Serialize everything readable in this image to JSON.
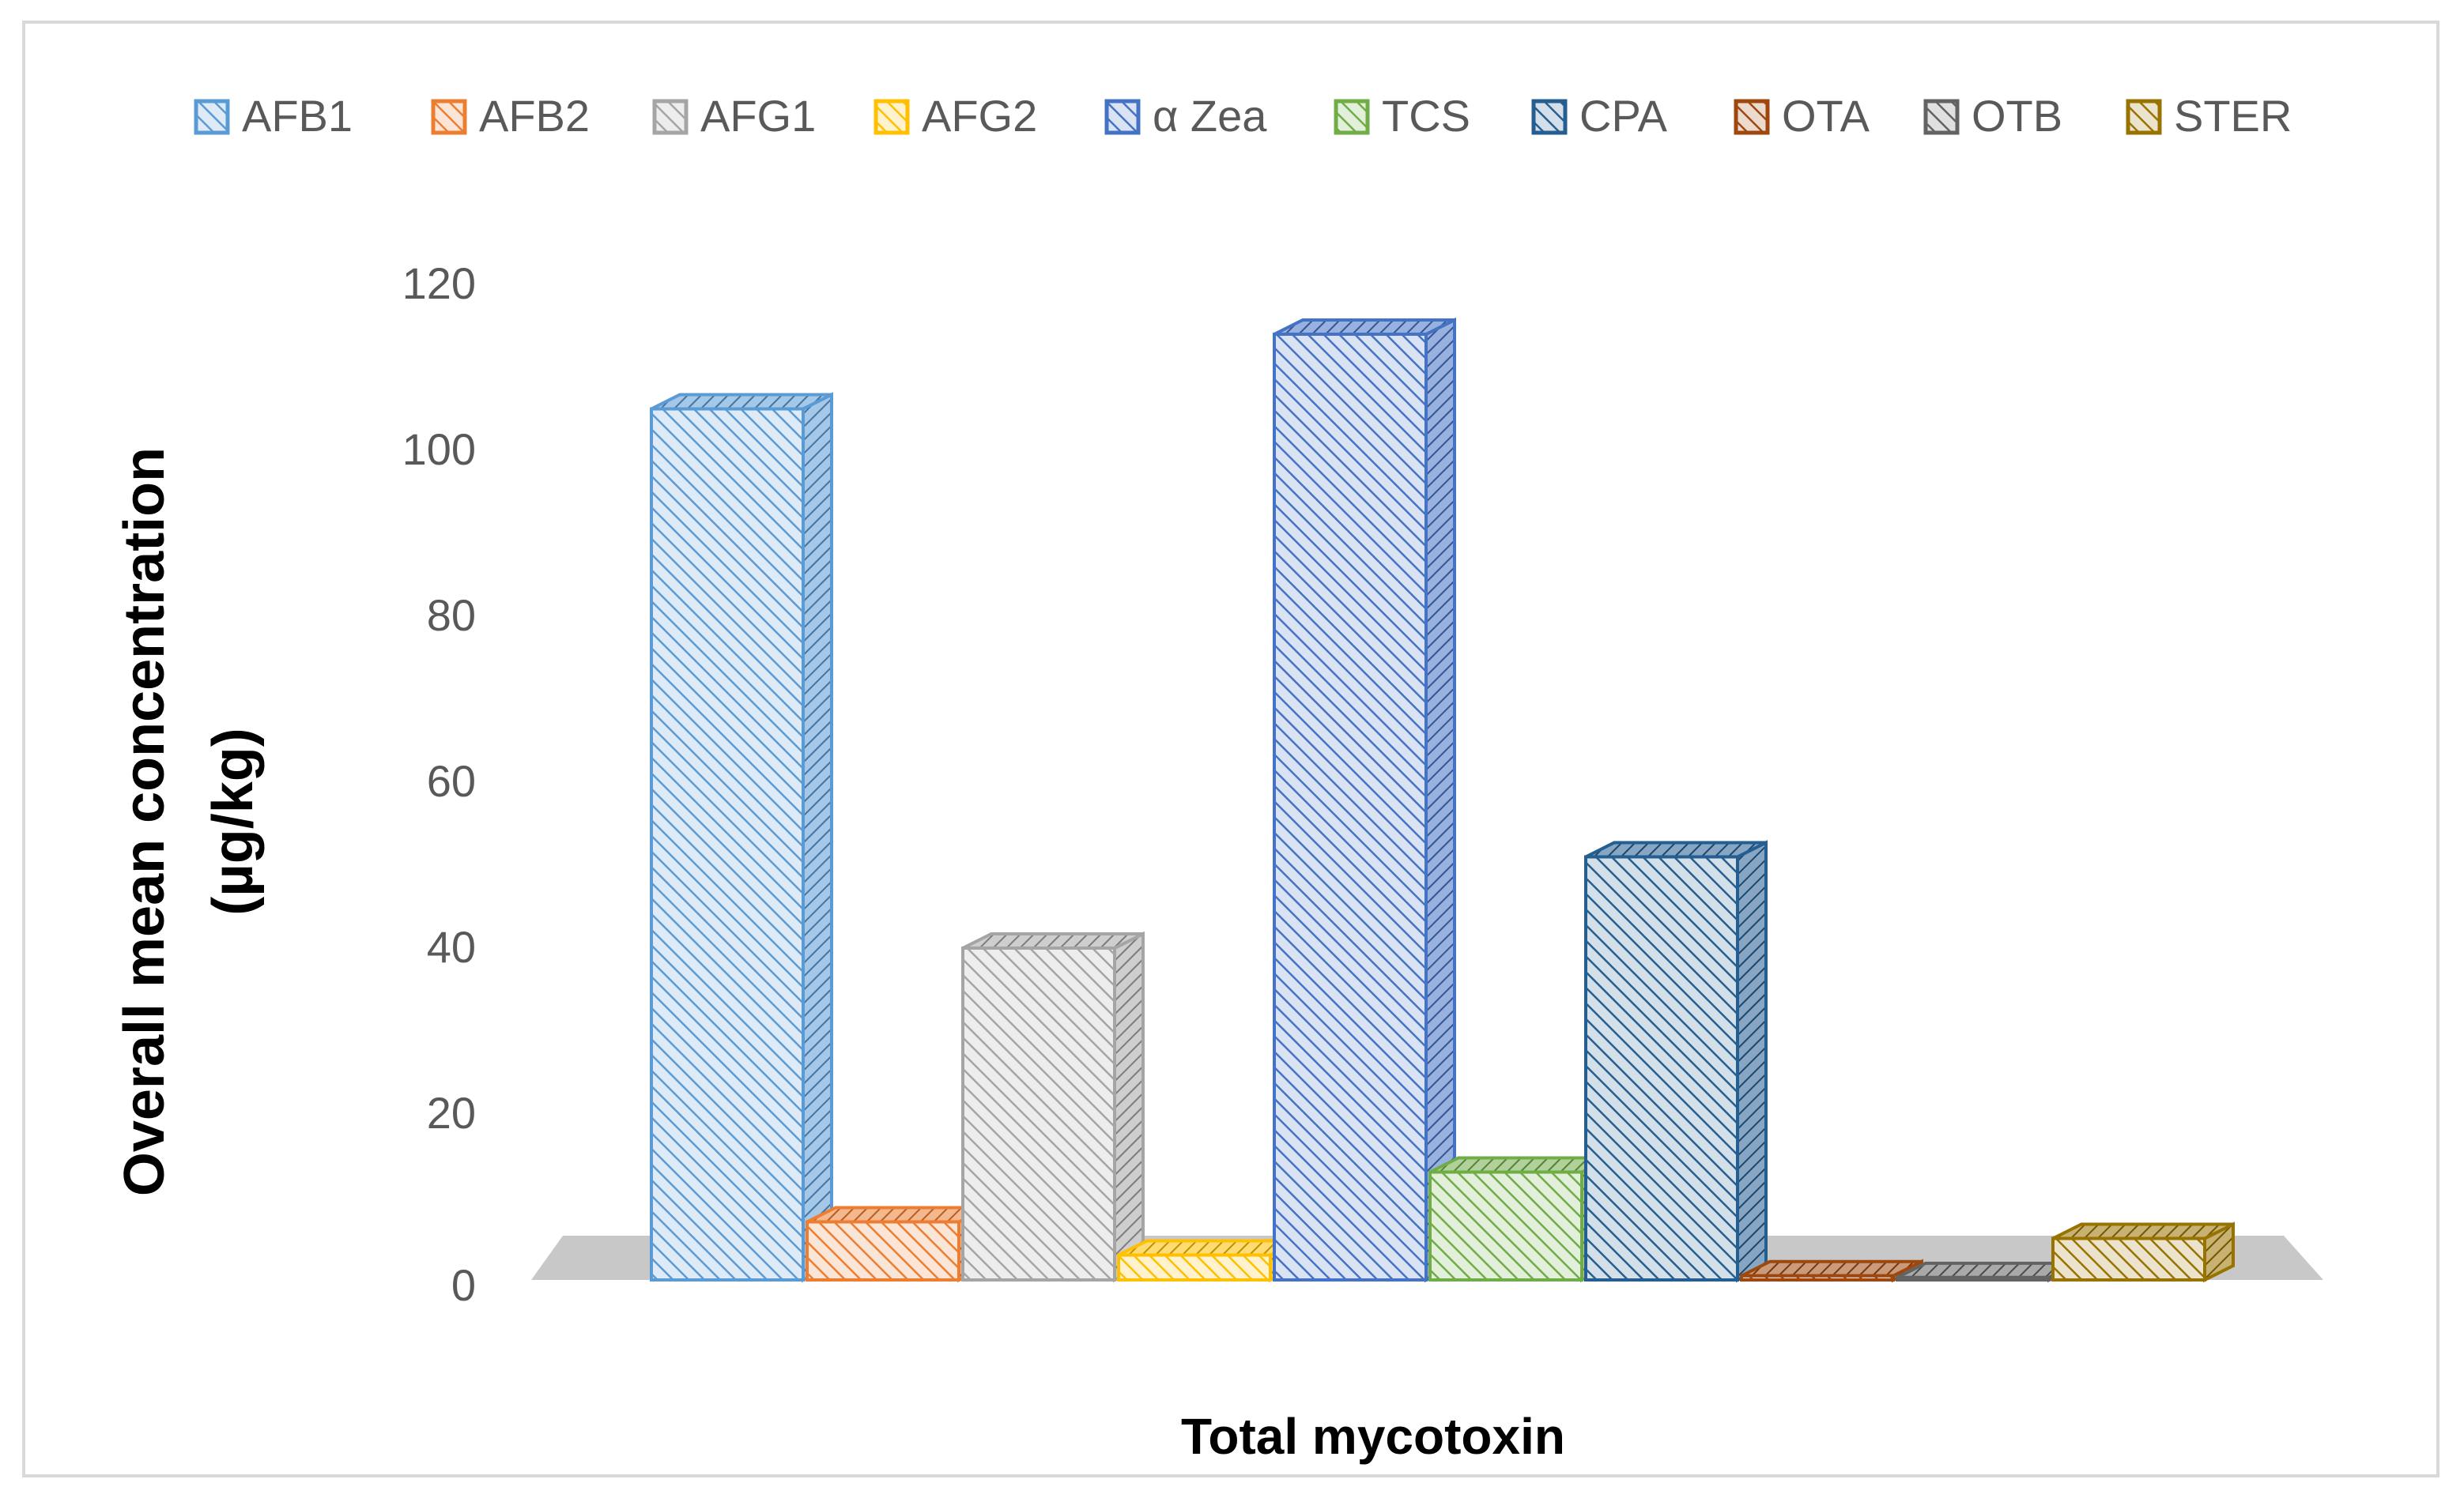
{
  "chart_data": {
    "type": "bar",
    "style": "3d-clustered-column-hatched",
    "title": "",
    "xlabel": "Total mycotoxin",
    "ylabel": "Overall mean concentration (µg/kg)",
    "ylabel_lines": [
      "Overall mean concentration",
      "(µg/kg)"
    ],
    "ylim": [
      0,
      120
    ],
    "yticks": [
      "0",
      "20",
      "40",
      "60",
      "80",
      "100",
      "120"
    ],
    "legend_position": "top",
    "categories": [
      "Total mycotoxin"
    ],
    "series": [
      {
        "name": "AFB1",
        "values": [
          105
        ],
        "color": "#5b9bd5"
      },
      {
        "name": "AFB2",
        "values": [
          7
        ],
        "color": "#ed7d31"
      },
      {
        "name": "AFG1",
        "values": [
          40
        ],
        "color": "#a5a5a5"
      },
      {
        "name": "AFG2",
        "values": [
          3
        ],
        "color": "#ffc000"
      },
      {
        "name": "α Zea",
        "values": [
          114
        ],
        "color": "#4472c4"
      },
      {
        "name": "TCS",
        "values": [
          13
        ],
        "color": "#70ad47"
      },
      {
        "name": "CPA",
        "values": [
          51
        ],
        "color": "#255e91"
      },
      {
        "name": "OTA",
        "values": [
          0.5
        ],
        "color": "#9e480e"
      },
      {
        "name": "OTB",
        "values": [
          0.3
        ],
        "color": "#636363"
      },
      {
        "name": "STER",
        "values": [
          5
        ],
        "color": "#997300"
      }
    ]
  }
}
